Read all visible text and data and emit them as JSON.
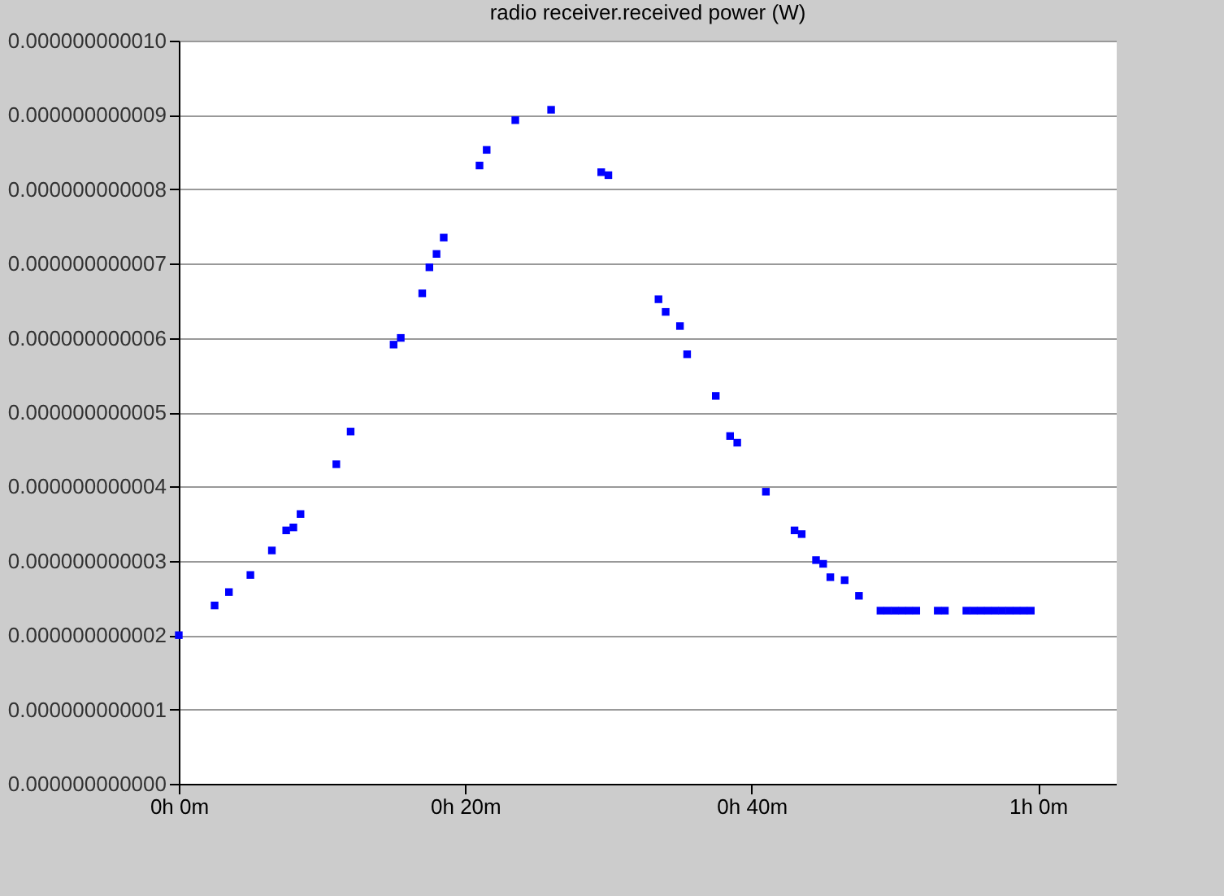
{
  "chart_data": {
    "type": "scatter",
    "title": "radio receiver.received power (W)",
    "categories": [
      "0h 0m",
      null,
      null,
      null,
      null,
      null,
      null,
      null,
      null,
      null,
      null,
      null,
      null,
      null,
      null,
      null,
      null,
      null,
      null,
      null,
      null,
      null,
      null,
      null,
      null,
      null,
      null,
      null,
      null,
      null,
      null,
      null,
      null,
      null,
      null,
      null,
      null,
      null,
      null,
      null,
      "0h 20m",
      null,
      null,
      null,
      null,
      null,
      null,
      null,
      null,
      null,
      null,
      null,
      null,
      null,
      null,
      null,
      null,
      null,
      null,
      null,
      null,
      null,
      null,
      null,
      null,
      null,
      null,
      null,
      null,
      null,
      null,
      null,
      null,
      null,
      null,
      null,
      null,
      null,
      null,
      null,
      "0h 40m",
      null,
      null,
      null,
      null,
      null,
      null,
      null,
      null,
      null,
      null,
      null,
      null,
      null,
      null,
      null,
      null,
      null,
      null,
      null,
      null,
      null,
      null,
      null,
      null,
      null,
      null,
      null,
      null,
      null,
      null,
      null,
      null,
      null,
      null,
      null,
      null,
      null,
      null,
      null,
      "1h 0m",
      null,
      null,
      null,
      null,
      null,
      null,
      null,
      null,
      null,
      null,
      null
    ],
    "series": [
      {
        "color": "#0000ff",
        "values": [
          2e-12,
          null,
          null,
          null,
          null,
          2.4e-12,
          null,
          2.58e-12,
          null,
          null,
          2.81e-12,
          null,
          null,
          3.14e-12,
          null,
          3.41e-12,
          3.45e-12,
          3.63e-12,
          null,
          null,
          null,
          null,
          4.3e-12,
          null,
          4.74e-12,
          null,
          null,
          null,
          null,
          null,
          5.91e-12,
          6e-12,
          null,
          null,
          6.6e-12,
          6.95e-12,
          7.13e-12,
          7.35e-12,
          null,
          null,
          null,
          null,
          8.32e-12,
          8.53e-12,
          null,
          null,
          null,
          8.93e-12,
          null,
          null,
          null,
          null,
          9.07e-12,
          null,
          null,
          null,
          null,
          null,
          null,
          8.23e-12,
          8.19e-12,
          null,
          null,
          null,
          null,
          null,
          null,
          6.52e-12,
          6.35e-12,
          null,
          6.16e-12,
          5.78e-12,
          null,
          null,
          null,
          5.22e-12,
          null,
          4.68e-12,
          4.59e-12,
          null,
          null,
          null,
          3.93e-12,
          null,
          null,
          null,
          3.41e-12,
          3.36e-12,
          null,
          3.01e-12,
          2.96e-12,
          2.78e-12,
          null,
          2.74e-12,
          null,
          2.53e-12,
          null,
          null,
          2.33e-12,
          2.33e-12,
          2.33e-12,
          2.33e-12,
          2.33e-12,
          2.33e-12,
          null,
          null,
          2.33e-12,
          2.33e-12,
          null,
          null,
          2.33e-12,
          2.33e-12,
          2.33e-12,
          2.33e-12,
          2.33e-12,
          2.33e-12,
          2.33e-12,
          2.33e-12,
          2.33e-12,
          2.33e-12,
          null,
          null,
          null,
          null,
          null,
          null,
          null,
          null,
          null,
          null,
          null,
          null
        ]
      }
    ],
    "ylim": [
      0,
      1e-11
    ],
    "yticks": [
      {
        "value": 0,
        "label": "0.000000000000"
      },
      {
        "value": 1e-12,
        "label": "0.000000000001"
      },
      {
        "value": 2e-12,
        "label": "0.000000000002"
      },
      {
        "value": 3e-12,
        "label": "0.000000000003"
      },
      {
        "value": 4e-12,
        "label": "0.000000000004"
      },
      {
        "value": 5e-12,
        "label": "0.000000000005"
      },
      {
        "value": 6e-12,
        "label": "0.000000000006"
      },
      {
        "value": 7e-12,
        "label": "0.000000000007"
      },
      {
        "value": 8e-12,
        "label": "0.000000000008"
      },
      {
        "value": 9e-12,
        "label": "0.000000000009"
      },
      {
        "value": 1e-11,
        "label": "0.000000000010"
      }
    ],
    "grid": "y",
    "marker": "square"
  }
}
